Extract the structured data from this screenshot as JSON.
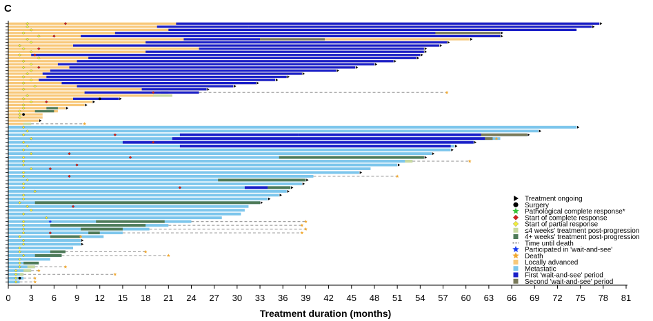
{
  "panel_label": "C",
  "chart_data": {
    "type": "swimmer",
    "title": "",
    "xlabel": "Treatment duration (months)",
    "ylabel": "",
    "xlim": [
      0,
      81
    ],
    "x_ticks": [
      0,
      3,
      6,
      9,
      12,
      15,
      18,
      21,
      24,
      27,
      30,
      33,
      36,
      39,
      42,
      45,
      48,
      51,
      54,
      57,
      60,
      63,
      66,
      69,
      72,
      75,
      78,
      81
    ],
    "grid": false,
    "legend_position": "bottom-right",
    "colors": {
      "locally_advanced": "#f8c87a",
      "metastatic": "#7dc6ec",
      "wait_first": "#1a1fc8",
      "wait_second": "#7a7a5a",
      "post_le4": "#c8d9a0",
      "post_4plus": "#4e7a58",
      "death_line": "#a0a0a0",
      "treatment_ongoing": "#000000",
      "surgery": "#000000",
      "path_cr": "#35c23a",
      "complete_response": "#d42020",
      "partial_response": "#f2ee3a",
      "wait_and_see_star": "#1a3cf0",
      "death_star": "#f0a830"
    },
    "legend": [
      {
        "key": "ongoing",
        "label": "Treatment ongoing",
        "icon": "triangle-right",
        "color": "#000000"
      },
      {
        "key": "surgery",
        "label": "Surgery",
        "icon": "circle",
        "color": "#000000"
      },
      {
        "key": "pcr",
        "label": "Pathological complete response*",
        "icon": "star",
        "color": "#35c23a"
      },
      {
        "key": "cr",
        "label": "Start of complete response",
        "icon": "diamond",
        "color": "#d42020"
      },
      {
        "key": "pr",
        "label": "Start of partial response",
        "icon": "diamond",
        "color": "#f2ee3a"
      },
      {
        "key": "le4",
        "label": "≤4 weeks' treatment post-progression",
        "icon": "square",
        "color": "#c8d9a0"
      },
      {
        "key": "gt4",
        "label": "4+ weeks' treatment post-progression",
        "icon": "square",
        "color": "#4e7a58"
      },
      {
        "key": "ttd",
        "label": "Time until death",
        "icon": "dash",
        "color": "#a0a0a0"
      },
      {
        "key": "was",
        "label": "Participated in 'wait-and-see'",
        "icon": "star",
        "color": "#1a3cf0"
      },
      {
        "key": "death",
        "label": "Death",
        "icon": "star",
        "color": "#f0a830"
      },
      {
        "key": "la",
        "label": "Locally advanced",
        "icon": "square",
        "color": "#f8c87a"
      },
      {
        "key": "met",
        "label": "Metastatic",
        "icon": "square",
        "color": "#7dc6ec"
      },
      {
        "key": "w1",
        "label": "First 'wait-and-see' period",
        "icon": "square",
        "color": "#1a1fc8"
      },
      {
        "key": "w2",
        "label": "Second 'wait-and-see' period",
        "icon": "square",
        "color": "#7a7a5a"
      }
    ],
    "groups": [
      {
        "name": "Locally advanced",
        "color_key": "locally_advanced",
        "patients": [
          {
            "end": 77.5,
            "ongoing": true,
            "w1": [
              [
                22,
                77.5
              ]
            ],
            "pr": 2.5,
            "cr": 7.5
          },
          {
            "end": 76.5,
            "ongoing": true,
            "w1": [
              [
                19.5,
                31.5
              ],
              [
                31.5,
                76.5
              ]
            ],
            "pr": 2.5
          },
          {
            "end": 74.5,
            "ongoing": false,
            "w1": [
              [
                21,
                74.5
              ]
            ],
            "pr": 3
          },
          {
            "end": 64.5,
            "ongoing": true,
            "w1": [
              [
                14,
                56
              ],
              [
                56,
                64.5
              ]
            ],
            "w2": [
              [
                56,
                64.5
              ]
            ],
            "pr": 2
          },
          {
            "end": 64.5,
            "ongoing": true,
            "w1": [
              [
                9.5,
                64.5
              ]
            ],
            "pr": 4,
            "cr": 6
          },
          {
            "end": 60.5,
            "ongoing": true,
            "w1": [
              [
                23,
                33
              ]
            ],
            "w2": [
              [
                33,
                41.5
              ]
            ],
            "pr": 2.5
          },
          {
            "end": 57.5,
            "ongoing": true,
            "w1": [
              [
                18,
                57.5
              ]
            ],
            "pr": 3
          },
          {
            "end": 56.5,
            "ongoing": true,
            "w1": [
              [
                8.5,
                56.5
              ]
            ],
            "pr": 1.5
          },
          {
            "end": 54.5,
            "ongoing": true,
            "w1": [
              [
                25,
                54.5
              ]
            ],
            "pr": 2,
            "cr": 4
          },
          {
            "end": 54.5,
            "ongoing": true,
            "w1": [
              [
                18,
                54.5
              ]
            ],
            "pr": 3
          },
          {
            "end": 54,
            "ongoing": true,
            "w1": [
              [
                3,
                54
              ]
            ],
            "pr": 1.5,
            "cr": 3.5
          },
          {
            "end": 53.5,
            "ongoing": true,
            "w1": [
              [
                10.5,
                53.5
              ]
            ],
            "pr": 4
          },
          {
            "end": 50.5,
            "ongoing": true,
            "w1": [
              [
                9,
                50.5
              ]
            ],
            "pr": 2
          },
          {
            "end": 48,
            "ongoing": true,
            "w1": [
              [
                6.5,
                48
              ]
            ],
            "pr": 3
          },
          {
            "end": 45.5,
            "ongoing": true,
            "w1": [
              [
                8,
                45.5
              ]
            ],
            "pr": 2,
            "cr": 4
          },
          {
            "end": 43,
            "ongoing": true,
            "w1": [
              [
                5.5,
                43
              ]
            ],
            "pr": 3
          },
          {
            "end": 38.5,
            "ongoing": true,
            "w1": [
              [
                4.5,
                38.5
              ]
            ],
            "pr": 2.5
          },
          {
            "end": 36.5,
            "ongoing": true,
            "w1": [
              [
                5,
                36.5
              ]
            ],
            "pr": 2
          },
          {
            "end": 35,
            "ongoing": true,
            "w1": [
              [
                4,
                35
              ]
            ],
            "pr": 3
          },
          {
            "end": 32.5,
            "ongoing": true,
            "w1": [
              [
                7,
                32.5
              ]
            ],
            "pr": 2
          },
          {
            "end": 29.5,
            "ongoing": true,
            "w1": [
              [
                9,
                29.5
              ]
            ],
            "pr": 3.5
          },
          {
            "end": 26,
            "ongoing": true,
            "w1": [
              [
                17.5,
                26
              ]
            ],
            "pr": 2
          },
          {
            "end": 25,
            "ongoing": false,
            "w1": [
              [
                10,
                25
              ]
            ],
            "cr": 19,
            "le4": [
              [
                19,
                20
              ]
            ],
            "gt4": [
              [
                20,
                21
              ]
            ],
            "ttd": 57.5
          },
          {
            "end": 21.5,
            "ongoing": false,
            "le4": [
              [
                19,
                21.5
              ]
            ],
            "pr": 2.5
          },
          {
            "end": 14.5,
            "ongoing": true,
            "w1": [
              [
                8.5,
                14.5
              ]
            ],
            "surgery": 12,
            "pr": 2
          },
          {
            "end": 11,
            "ongoing": true,
            "pr": 3,
            "cr": 5
          },
          {
            "end": 10,
            "ongoing": true,
            "pr": 2
          },
          {
            "end": 7.5,
            "ongoing": true,
            "gt4": [
              [
                5,
                6.5
              ]
            ],
            "pr": 2
          },
          {
            "end": 6.5,
            "ongoing": false,
            "gt4": [
              [
                3.5,
                6
              ]
            ],
            "pr": 1.5
          },
          {
            "end": 4.5,
            "ongoing": false,
            "surgery": 2,
            "pr": 1.5
          },
          {
            "end": 4.5,
            "ongoing": false,
            "pr": 1.5
          },
          {
            "end": 4,
            "ongoing": true
          },
          {
            "end": 3,
            "ongoing": false,
            "le4": [
              [
                2,
                3
              ]
            ],
            "ttd": 10
          }
        ]
      },
      {
        "name": "Metastatic",
        "color_key": "metastatic",
        "patients": [
          {
            "end": 74.5,
            "ongoing": true,
            "pr": 2
          },
          {
            "end": 69.5,
            "ongoing": true,
            "pr": 2.5
          },
          {
            "end": 68,
            "ongoing": true,
            "w1": [
              [
                22.5,
                38
              ],
              [
                38,
                62
              ]
            ],
            "w2": [
              [
                62,
                68
              ]
            ],
            "pr": 2,
            "cr": 14
          },
          {
            "end": 64.5,
            "ongoing": false,
            "w1": [
              [
                21.5,
                62.5
              ]
            ],
            "w2": [
              [
                62.5,
                63.5
              ]
            ],
            "ttd": 64,
            "pr": 3
          },
          {
            "end": 61,
            "ongoing": true,
            "w1": [
              [
                15,
                61
              ]
            ],
            "pr": 2,
            "cr": 19
          },
          {
            "end": 58.5,
            "ongoing": true,
            "w1": [
              [
                22.5,
                58
              ]
            ],
            "pr": 2.5
          },
          {
            "end": 58,
            "ongoing": true,
            "pr": 2
          },
          {
            "end": 55.5,
            "ongoing": true,
            "pr": 3,
            "cr": 8
          },
          {
            "end": 54.5,
            "ongoing": true,
            "gt4": [
              [
                35.5,
                54.5
              ]
            ],
            "pr": 2,
            "cr": 16
          },
          {
            "end": 53,
            "ongoing": false,
            "le4": [
              [
                52,
                53
              ]
            ],
            "ttd": 60.5,
            "pr": 2
          },
          {
            "end": 51,
            "ongoing": true,
            "pr": 2,
            "cr": 9
          },
          {
            "end": 47.5,
            "ongoing": false,
            "pr": 3,
            "cr": 5.5
          },
          {
            "end": 46,
            "ongoing": true,
            "pr": 2
          },
          {
            "end": 40,
            "ongoing": false,
            "ttd": 51,
            "pr": 2,
            "cr": 8
          },
          {
            "end": 39,
            "ongoing": true,
            "gt4": [
              [
                27.5,
                39
              ]
            ],
            "pr": 2.5
          },
          {
            "end": 38.5,
            "ongoing": true,
            "pr": 2
          },
          {
            "end": 37,
            "ongoing": true,
            "w1": [
              [
                31,
                34
              ]
            ],
            "gt4": [
              [
                34,
                37
              ]
            ],
            "pr": 2,
            "cr": 22.5
          },
          {
            "end": 36.5,
            "ongoing": true,
            "pr": 3.5
          },
          {
            "end": 35.5,
            "ongoing": true,
            "pr": 2
          },
          {
            "end": 34,
            "ongoing": true,
            "pr": 2
          },
          {
            "end": 33,
            "ongoing": true,
            "gt4": [
              [
                3.5,
                33
              ]
            ],
            "pr": 1.5
          },
          {
            "end": 31.5,
            "ongoing": false,
            "pr": 2.5,
            "cr": 8.5
          },
          {
            "end": 31,
            "ongoing": false,
            "pr": 3
          },
          {
            "end": 30.5,
            "ongoing": false,
            "pr": 2
          },
          {
            "end": 28,
            "ongoing": false,
            "pr": 5
          },
          {
            "end": 24,
            "ongoing": false,
            "gt4": [
              [
                11.5,
                20.5
              ]
            ],
            "ttd": 39,
            "pr": 2,
            "was": 5.5
          },
          {
            "end": 21,
            "ongoing": false,
            "gt4": [
              [
                5.5,
                18
              ]
            ],
            "ttd": 38.5,
            "pr": 2
          },
          {
            "end": 18.5,
            "ongoing": false,
            "gt4": [
              [
                9.5,
                15
              ]
            ],
            "ttd": 39,
            "pr": 2
          },
          {
            "end": 15,
            "ongoing": false,
            "gt4": [
              [
                10.5,
                12
              ]
            ],
            "ttd": 38.5,
            "pr": 2,
            "cr": 5.5
          },
          {
            "end": 12.5,
            "ongoing": false,
            "gt4": [
              [
                5.5,
                9.5
              ]
            ],
            "ttd": 9.5,
            "pr": 1.5
          },
          {
            "end": 9.5,
            "ongoing": true,
            "pr": 2
          },
          {
            "end": 9.5,
            "ongoing": true,
            "pr": 2
          },
          {
            "end": 8.5,
            "ongoing": false,
            "pr": 1.5
          },
          {
            "end": 7.5,
            "ongoing": false,
            "gt4": [
              [
                5.5,
                7.5
              ]
            ],
            "ttd": 18,
            "pr": 1.5
          },
          {
            "end": 7,
            "ongoing": false,
            "gt4": [
              [
                3.5,
                7
              ]
            ],
            "ttd": 21,
            "pr": 2
          },
          {
            "end": 5.5,
            "ongoing": false,
            "pr": 1.5
          },
          {
            "end": 4,
            "ongoing": false,
            "gt4": [
              [
                2,
                4
              ]
            ],
            "pr": 1.5
          },
          {
            "end": 3.5,
            "ongoing": false,
            "le4": [
              [
                2.5,
                3.5
              ]
            ],
            "ttd": 7.5,
            "pr": 1.5
          },
          {
            "end": 3,
            "ongoing": false,
            "le4": [
              [
                2,
                3
              ]
            ],
            "ttd": 4,
            "pr": 1
          },
          {
            "end": 2,
            "ongoing": false,
            "le4": [
              [
                1.5,
                2
              ]
            ],
            "ttd": 14,
            "pr": 1
          },
          {
            "end": 2,
            "ongoing": false,
            "ttd": 3.5,
            "surgery": 1.5,
            "pr": 1
          },
          {
            "end": 1.5,
            "ongoing": false,
            "ttd": 3.5,
            "pr": 1
          }
        ]
      }
    ]
  }
}
